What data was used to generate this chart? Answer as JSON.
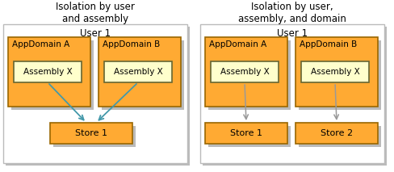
{
  "title_left": "Isolation by user\nand assembly",
  "title_right": "Isolation by user,\nassembly, and domain",
  "user_label": "User 1",
  "appdomain_a": "AppDomain A",
  "appdomain_b": "AppDomain B",
  "assembly_label": "Assembly X",
  "store1_label": "Store 1",
  "store2_label": "Store 2",
  "colors": {
    "outer_box_fill": "#FFFFFF",
    "outer_box_edge": "#BBBBBB",
    "appdomain_fill": "#FFAA33",
    "appdomain_edge": "#996600",
    "assembly_fill": "#FFFFCC",
    "assembly_edge": "#666633",
    "store_fill": "#FFAA33",
    "store_edge": "#996600",
    "arrow_teal": "#4499AA",
    "arrow_gray": "#999999",
    "title_color": "#000000",
    "label_color": "#000000",
    "shadow_color": "#BBBBBB"
  },
  "font_sizes": {
    "title": 8.5,
    "user": 8.5,
    "appdomain": 7.5,
    "assembly": 7.5,
    "store": 8
  }
}
